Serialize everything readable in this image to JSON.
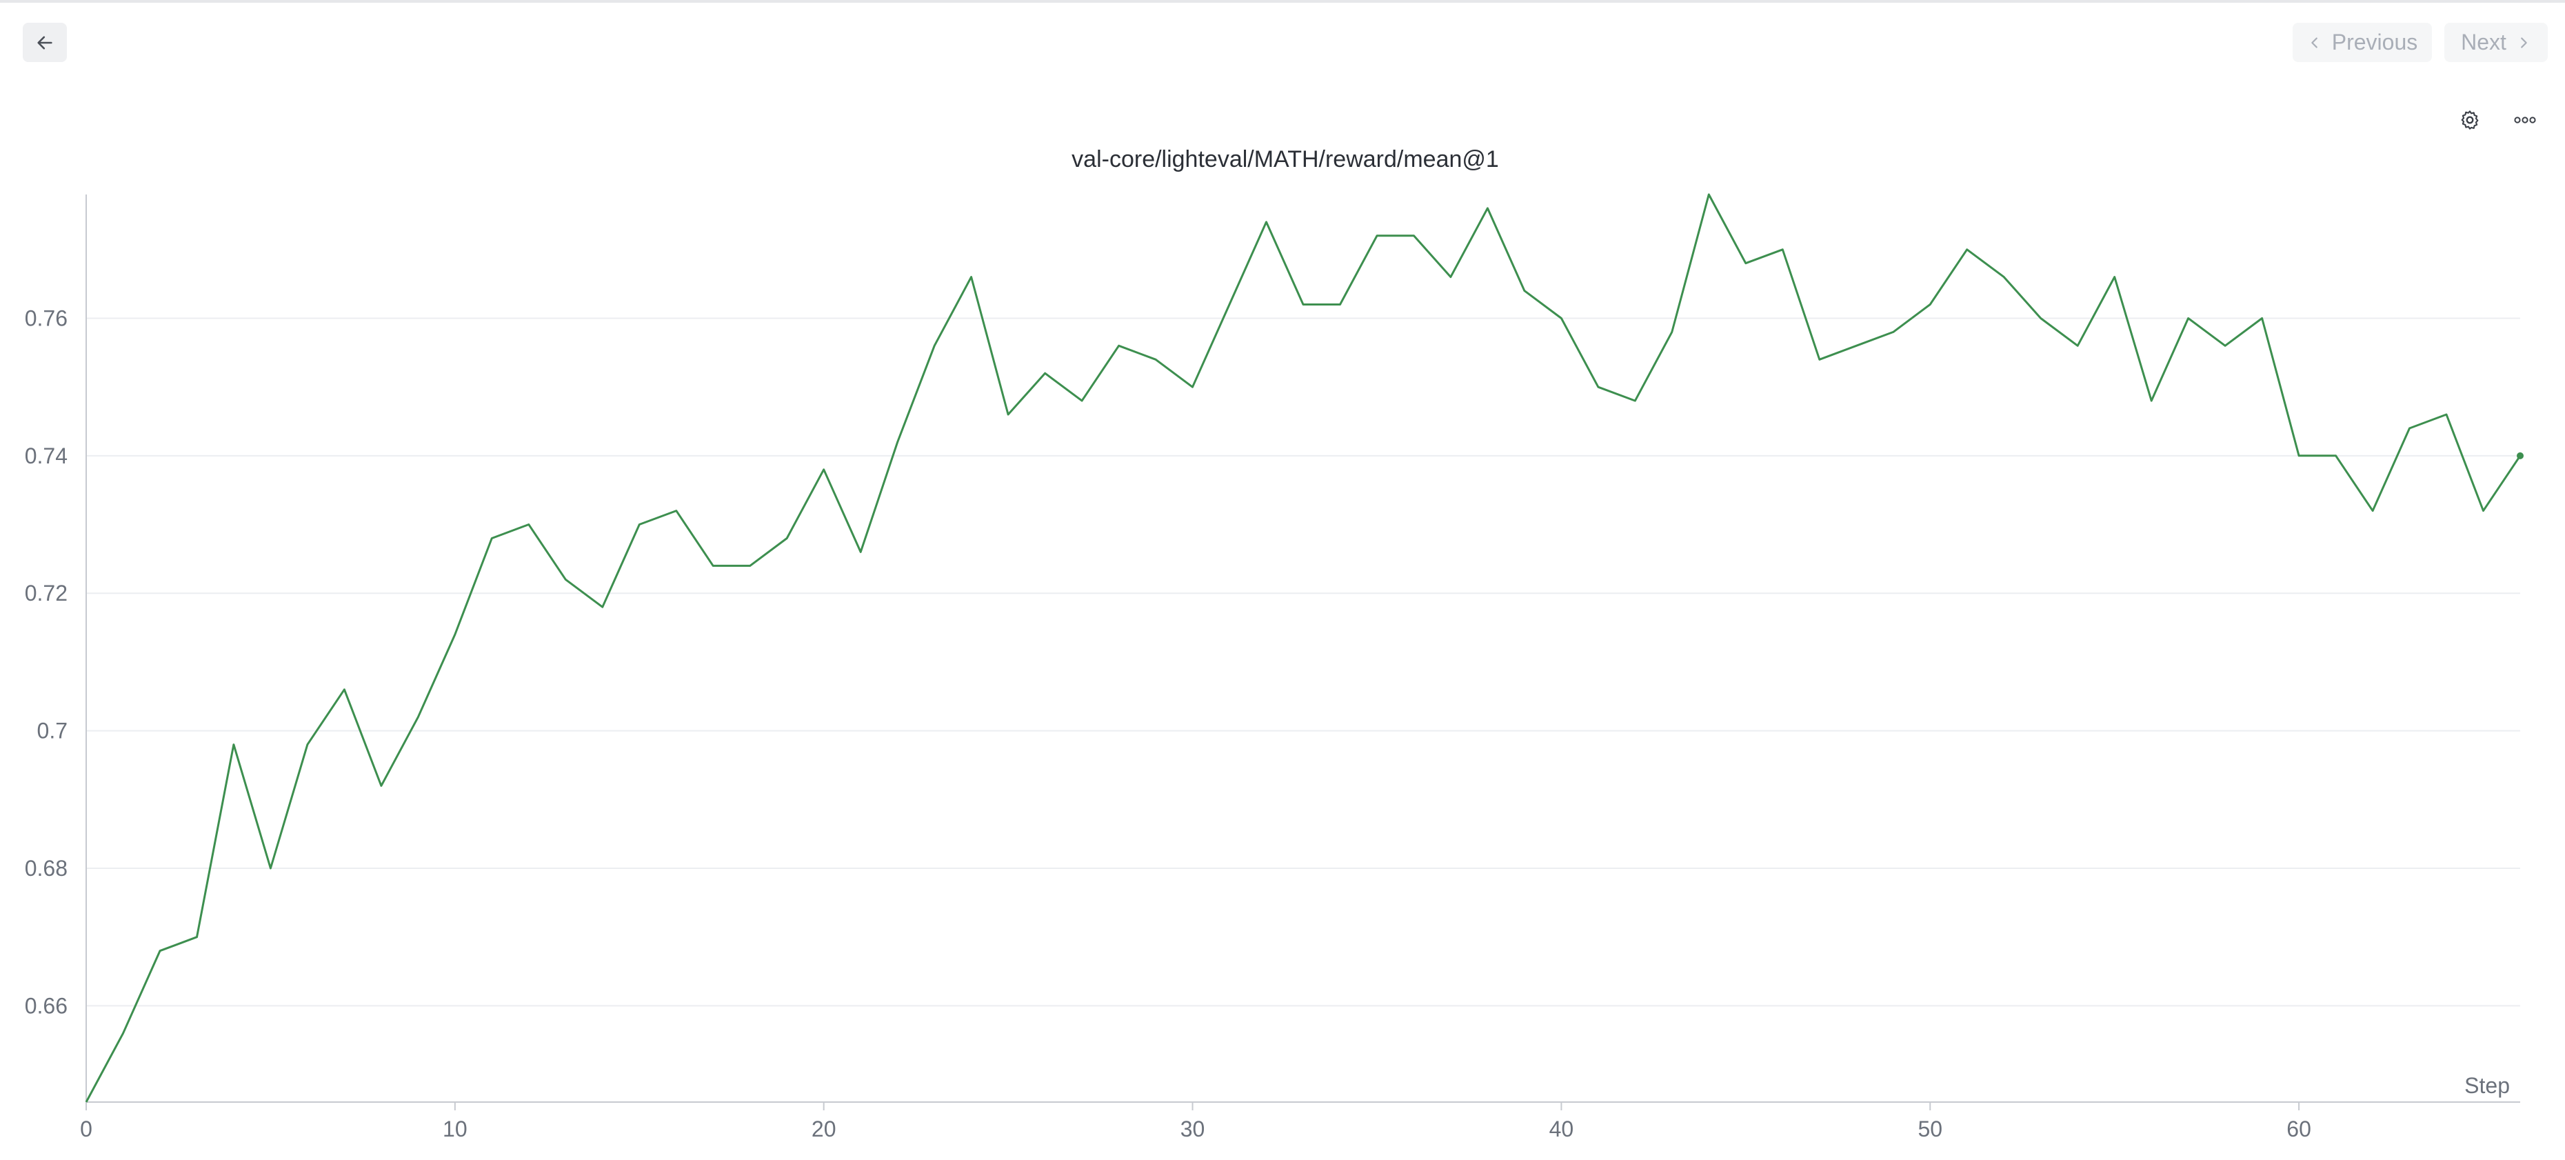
{
  "toolbar": {
    "back_icon": "arrow-left-icon",
    "previous_label": "Previous",
    "next_label": "Next",
    "previous_icon": "chevron-left-icon",
    "next_icon": "chevron-right-icon"
  },
  "panel": {
    "settings_icon": "gear-icon",
    "more_icon": "more-horizontal-icon"
  },
  "chart_data": {
    "type": "line",
    "title": "val-core/lighteval/MATH/reward/mean@1",
    "xlabel": "Step",
    "ylabel": "",
    "xlim": [
      0,
      66
    ],
    "ylim": [
      0.646,
      0.778
    ],
    "xticks": [
      0,
      10,
      20,
      30,
      40,
      50,
      60
    ],
    "yticks": [
      0.66,
      0.68,
      0.7,
      0.72,
      0.74,
      0.76
    ],
    "ytick_labels": [
      "0.66",
      "0.68",
      "0.7",
      "0.72",
      "0.74",
      "0.76"
    ],
    "grid": "horizontal",
    "color": "#3d8f4f",
    "series": [
      {
        "x": [
          0,
          1,
          2,
          3,
          4,
          5,
          6,
          7,
          8,
          9,
          10,
          11,
          12,
          13,
          14,
          15,
          16,
          17,
          18,
          19,
          20,
          21,
          22,
          23,
          24,
          25,
          26,
          27,
          28,
          29,
          30,
          31,
          32,
          33,
          34,
          35,
          36,
          37,
          38,
          39,
          40,
          41,
          42,
          43,
          44,
          45,
          46,
          47,
          48,
          49,
          50,
          51,
          52,
          53,
          54,
          55,
          56,
          57,
          58,
          59,
          60,
          61,
          62,
          63,
          64,
          65,
          66
        ],
        "values": [
          0.646,
          0.656,
          0.668,
          0.67,
          0.698,
          0.68,
          0.698,
          0.706,
          0.692,
          0.702,
          0.714,
          0.728,
          0.73,
          0.722,
          0.718,
          0.73,
          0.732,
          0.724,
          0.724,
          0.728,
          0.738,
          0.726,
          0.742,
          0.756,
          0.766,
          0.746,
          0.752,
          0.748,
          0.756,
          0.754,
          0.75,
          0.762,
          0.774,
          0.762,
          0.762,
          0.772,
          0.772,
          0.766,
          0.776,
          0.764,
          0.76,
          0.75,
          0.748,
          0.758,
          0.778,
          0.768,
          0.77,
          0.754,
          0.756,
          0.758,
          0.762,
          0.77,
          0.766,
          0.76,
          0.756,
          0.766,
          0.748,
          0.76,
          0.756,
          0.76,
          0.74,
          0.74,
          0.732,
          0.744,
          0.746,
          0.732,
          0.74
        ]
      }
    ]
  }
}
